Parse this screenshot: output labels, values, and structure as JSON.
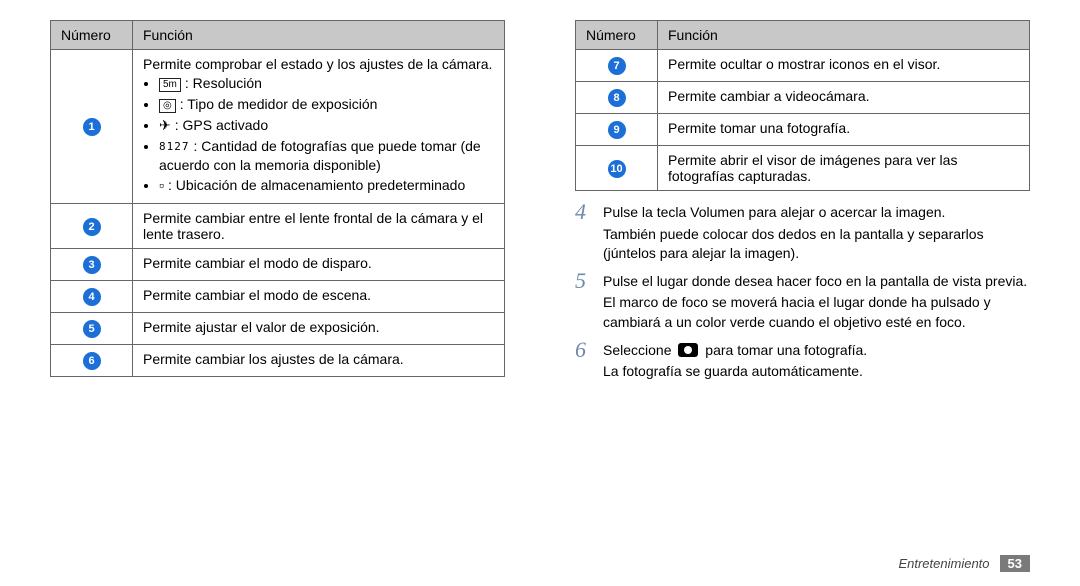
{
  "leftTable": {
    "headers": [
      "Número",
      "Función"
    ],
    "rows": [
      {
        "num": "1",
        "lead": "Permite comprobar el estado y los ajustes de la cámara.",
        "bullets": [
          {
            "icon": "res-icon",
            "text": ": Resolución"
          },
          {
            "icon": "meter-icon",
            "text": ": Tipo de medidor de exposición"
          },
          {
            "icon": "gps-icon",
            "text": ": GPS activado"
          },
          {
            "icon": "count-icon",
            "text": ": Cantidad de fotografías que puede tomar (de acuerdo con la memoria disponible)"
          },
          {
            "icon": "storage-icon",
            "text": ": Ubicación de almacenamiento predeterminado"
          }
        ]
      },
      {
        "num": "2",
        "text": "Permite cambiar entre el lente frontal de la cámara y el lente trasero."
      },
      {
        "num": "3",
        "text": "Permite cambiar el modo de disparo."
      },
      {
        "num": "4",
        "text": "Permite cambiar el modo de escena."
      },
      {
        "num": "5",
        "text": "Permite ajustar el valor de exposición."
      },
      {
        "num": "6",
        "text": "Permite cambiar los ajustes de la cámara."
      }
    ]
  },
  "rightTable": {
    "headers": [
      "Número",
      "Función"
    ],
    "rows": [
      {
        "num": "7",
        "text": "Permite ocultar o mostrar iconos en el visor."
      },
      {
        "num": "8",
        "text": "Permite cambiar a videocámara."
      },
      {
        "num": "9",
        "text": "Permite tomar una fotografía."
      },
      {
        "num": "10",
        "text": "Permite abrir el visor de imágenes para ver las fotografías capturadas."
      }
    ]
  },
  "steps": {
    "s4a": "Pulse la tecla Volumen para alejar o acercar la imagen.",
    "s4b": "También puede colocar dos dedos en la pantalla y separarlos (júntelos para alejar la imagen).",
    "s5a": "Pulse el lugar donde desea hacer foco en la pantalla de vista previa.",
    "s5b": "El marco de foco se moverá hacia el lugar donde ha pulsado y cambiará a un color verde cuando el objetivo esté en foco.",
    "s6a_pre": "Seleccione ",
    "s6a_post": " para tomar una fotografía.",
    "s6b": "La fotografía se guarda automáticamente.",
    "n4": "4",
    "n5": "5",
    "n6": "6"
  },
  "footer": {
    "section": "Entretenimiento",
    "page": "53"
  },
  "icons": {
    "res": "5m",
    "meter": "◎",
    "gps": "✈",
    "count": "8127",
    "storage": "▫"
  }
}
